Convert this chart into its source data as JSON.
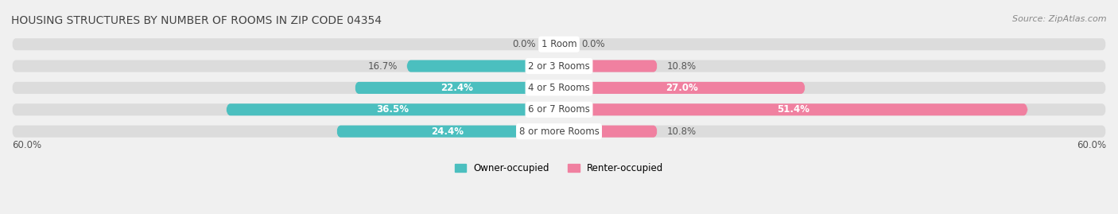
{
  "title": "HOUSING STRUCTURES BY NUMBER OF ROOMS IN ZIP CODE 04354",
  "source": "Source: ZipAtlas.com",
  "categories": [
    "1 Room",
    "2 or 3 Rooms",
    "4 or 5 Rooms",
    "6 or 7 Rooms",
    "8 or more Rooms"
  ],
  "owner_values": [
    0.0,
    16.7,
    22.4,
    36.5,
    24.4
  ],
  "renter_values": [
    0.0,
    10.8,
    27.0,
    51.4,
    10.8
  ],
  "owner_color": "#4BBFBF",
  "renter_color": "#F080A0",
  "bg_color": "#F0F0F0",
  "bar_bg_color": "#DCDCDC",
  "x_max": 60.0,
  "axis_label_left": "60.0%",
  "axis_label_right": "60.0%",
  "legend_owner": "Owner-occupied",
  "legend_renter": "Renter-occupied",
  "bar_height": 0.55,
  "title_fontsize": 10,
  "label_fontsize": 8.5,
  "source_fontsize": 8,
  "inside_label_threshold": 20.0
}
